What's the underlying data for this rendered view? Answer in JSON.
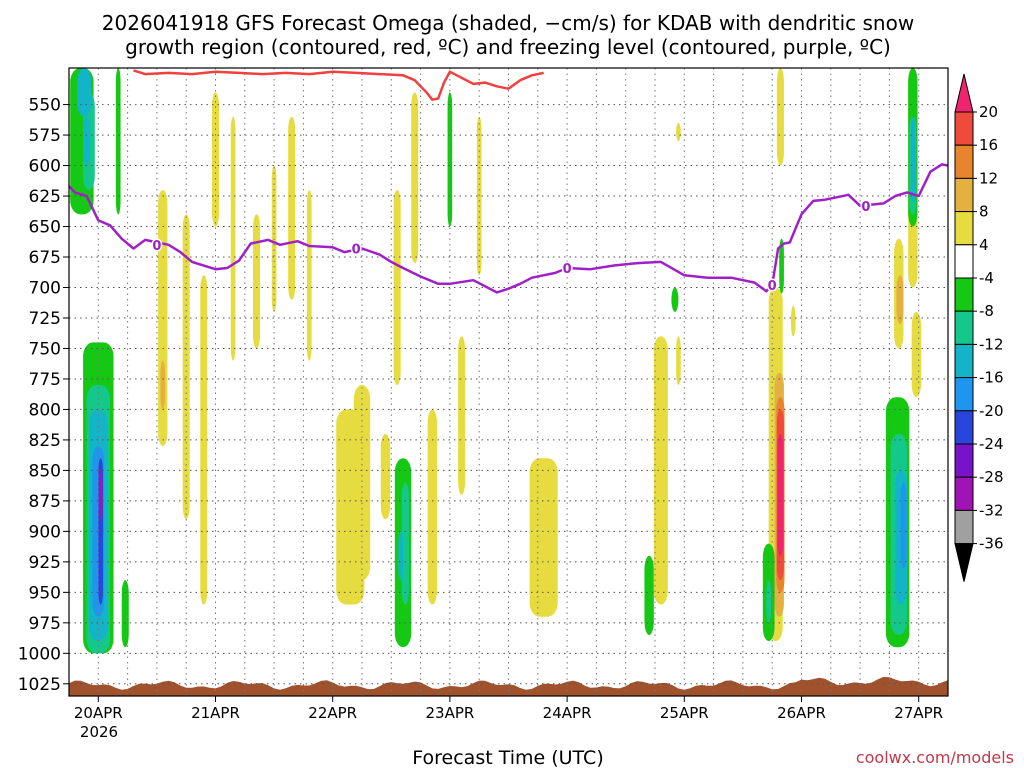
{
  "chart_data": {
    "type": "heatmap",
    "title_line1": "2026041918 GFS Forecast Omega (shaded, −cm/s) for KDAB with dendritic snow",
    "title_line2": "growth region (contoured, red, ºC) and freezing level (contoured, purple, ºC)",
    "xlabel": "Forecast Time (UTC)",
    "year_label": "2026",
    "credit": "coolwx.com/models",
    "x_ticks": [
      "20APR",
      "21APR",
      "22APR",
      "23APR",
      "24APR",
      "25APR",
      "26APR",
      "27APR"
    ],
    "y_ticks": [
      "550",
      "575",
      "600",
      "625",
      "650",
      "675",
      "700",
      "725",
      "750",
      "775",
      "800",
      "825",
      "850",
      "875",
      "900",
      "925",
      "950",
      "975",
      "1000",
      "1025"
    ],
    "ylim": [
      1035,
      520
    ],
    "xlim_days": [
      19.75,
      27.25
    ],
    "colorbar": {
      "labels": [
        "20",
        "16",
        "12",
        "8",
        "4",
        "-4",
        "-8",
        "-12",
        "-16",
        "-20",
        "-24",
        "-28",
        "-32",
        "-36"
      ],
      "colors": [
        "#f0246e",
        "#f04a3c",
        "#e8842c",
        "#e4b040",
        "#e6dc40",
        "#ffffff",
        "#14c814",
        "#14c88c",
        "#14b4c8",
        "#1e96f0",
        "#2846dc",
        "#7814c8",
        "#a014b4",
        "#a0a0a0",
        "#000000"
      ]
    },
    "freezing_level": {
      "label": "0",
      "color": "#a020c8",
      "x": [
        19.75,
        19.8,
        19.9,
        20.0,
        20.1,
        20.2,
        20.3,
        20.4,
        20.5,
        20.6,
        20.7,
        20.8,
        21.0,
        21.1,
        21.2,
        21.3,
        21.45,
        21.55,
        21.7,
        21.8,
        22.0,
        22.1,
        22.25,
        22.4,
        22.5,
        22.6,
        22.75,
        22.9,
        23.0,
        23.2,
        23.4,
        23.5,
        23.6,
        23.7,
        23.9,
        24.0,
        24.2,
        24.4,
        24.6,
        24.8,
        25.0,
        25.2,
        25.4,
        25.6,
        25.7,
        25.75,
        25.8,
        25.85,
        25.9,
        26.0,
        26.1,
        26.2,
        26.3,
        26.4,
        26.5,
        26.6,
        26.7,
        26.8,
        26.9,
        27.0,
        27.1,
        27.2,
        27.25
      ],
      "y": [
        617,
        622,
        625,
        645,
        649,
        660,
        668,
        661,
        663,
        665,
        671,
        679,
        685,
        684,
        678,
        664,
        661,
        665,
        662,
        666,
        667,
        671,
        668,
        673,
        679,
        684,
        691,
        697,
        697,
        694,
        704,
        701,
        697,
        692,
        688,
        684,
        685,
        682,
        680,
        679,
        690,
        692,
        692,
        696,
        703,
        698,
        668,
        664,
        663,
        640,
        629,
        628,
        626,
        624,
        633,
        632,
        631,
        625,
        622,
        625,
        605,
        599,
        600
      ]
    },
    "dgz_top": {
      "color": "#f04040",
      "x": [
        20.3,
        20.4,
        20.6,
        20.8,
        21.0,
        21.2,
        21.4,
        21.6,
        21.8,
        22.0,
        22.2,
        22.4,
        22.6,
        22.7,
        22.8,
        22.85,
        22.9,
        22.95,
        23.0,
        23.1,
        23.2,
        23.3,
        23.4,
        23.5,
        23.6,
        23.7,
        23.8
      ],
      "y": [
        522,
        525,
        524,
        525,
        523,
        524,
        525,
        524,
        525,
        523,
        524,
        525,
        526,
        530,
        540,
        546,
        545,
        532,
        523,
        528,
        533,
        532,
        535,
        537,
        530,
        526,
        524
      ]
    }
  }
}
